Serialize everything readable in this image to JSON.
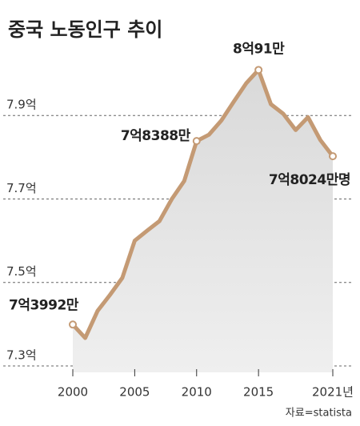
{
  "chart_data": {
    "type": "line",
    "title": "중국 노동인구 추이",
    "source": "자료=statista",
    "x": [
      2000,
      2001,
      2002,
      2003,
      2004,
      2005,
      2006,
      2007,
      2008,
      2009,
      2010,
      2011,
      2012,
      2013,
      2014,
      2015,
      2016,
      2017,
      2018,
      2019,
      2020,
      2021
    ],
    "values": [
      7.3992,
      7.367,
      7.432,
      7.47,
      7.511,
      7.6,
      7.624,
      7.647,
      7.7,
      7.743,
      7.8388,
      7.854,
      7.888,
      7.933,
      7.977,
      8.0091,
      7.927,
      7.904,
      7.865,
      7.896,
      7.841,
      7.8024
    ],
    "value_labels": [
      "7억3992만",
      null,
      null,
      null,
      null,
      null,
      null,
      null,
      null,
      null,
      "7억8388만",
      null,
      null,
      null,
      null,
      "8억91만",
      null,
      null,
      null,
      null,
      null,
      "7억8024만명"
    ],
    "color": "#c49a74",
    "area_color": "#e4e4e4",
    "xlim": [
      2000,
      2021
    ],
    "xticks": [
      2000,
      2005,
      2010,
      2015,
      {
        "value": 2021,
        "label": "2021년"
      }
    ],
    "ylim": [
      7.3,
      8.05
    ],
    "yticks": [
      {
        "value": 7.3,
        "label": "7.3억"
      },
      {
        "value": 7.5,
        "label": "7.5억"
      },
      {
        "value": 7.7,
        "label": "7.7억"
      },
      {
        "value": 7.9,
        "label": "7.9억"
      }
    ],
    "grid": true
  }
}
